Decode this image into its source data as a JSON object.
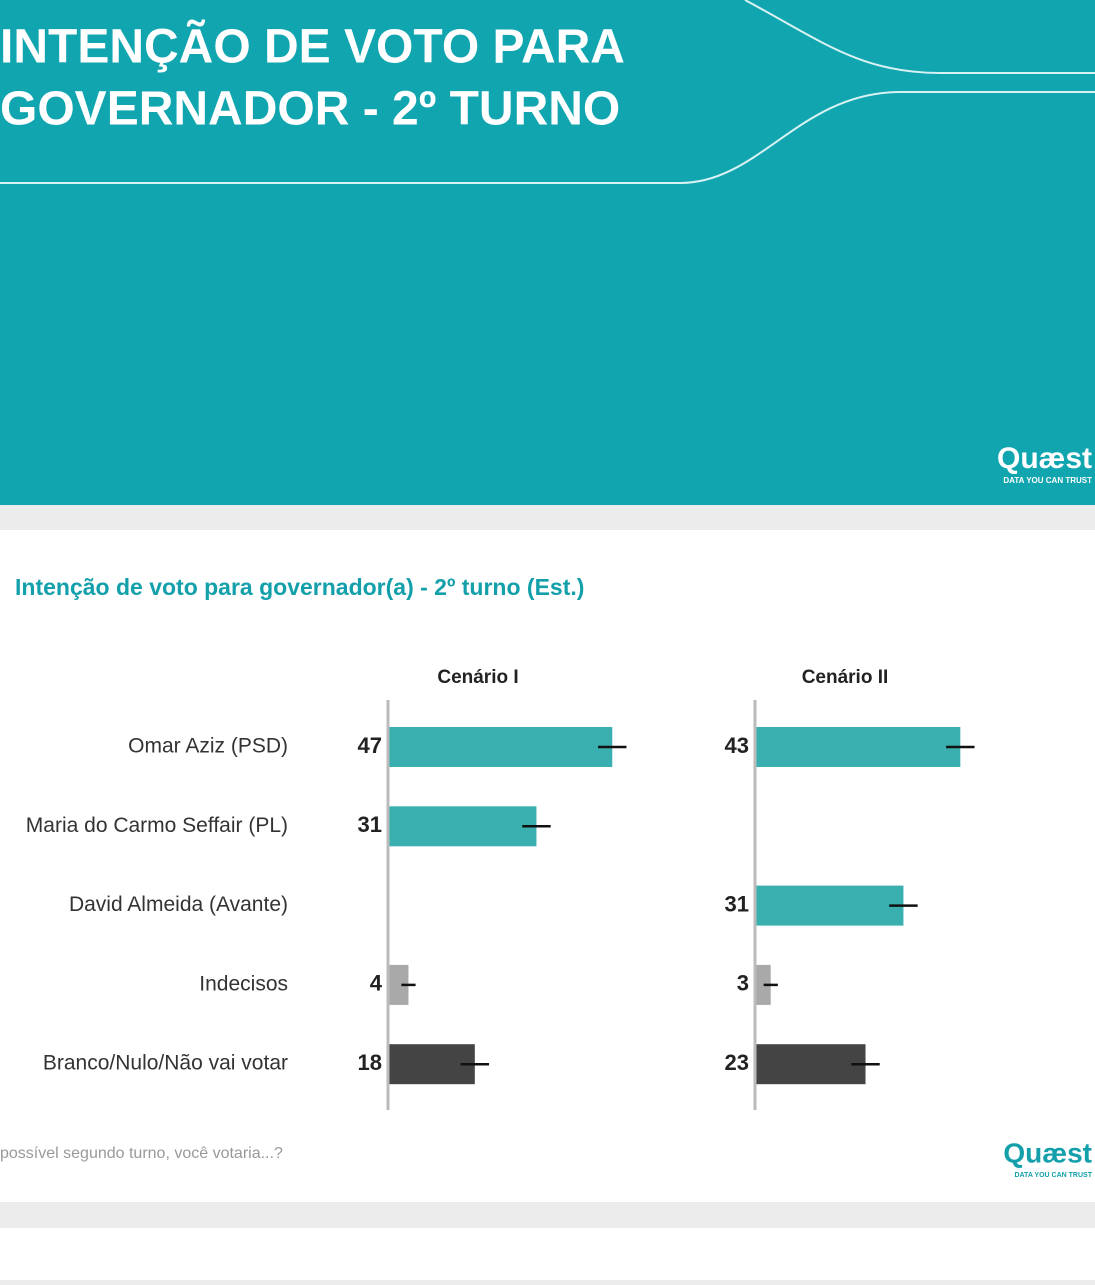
{
  "banner": {
    "title_lines": [
      "INTENÇÃO DE VOTO PARA",
      "GOVERNADOR - 2º TURNO"
    ],
    "logo": "Quæst",
    "tagline": "DATA YOU CAN TRUST"
  },
  "slide": {
    "title": "Intenção de voto para governador(a) - 2º turno (Est.)",
    "footnote": "possível segundo turno, você votaria...?",
    "logo": "Quæst",
    "tagline": "DATA YOU CAN TRUST"
  },
  "chart_data": {
    "type": "bar",
    "orientation": "horizontal",
    "categories": [
      "Omar Aziz (PSD)",
      "Maria do Carmo Seffair (PL)",
      "David Almeida (Avante)",
      "Indecisos",
      "Branco/Nulo/Não vai votar"
    ],
    "category_colors": [
      "#3aafb0",
      "#3aafb0",
      "#3aafb0",
      "#a9a9a9",
      "#444444"
    ],
    "series": [
      {
        "name": "Cenário I",
        "values": [
          47,
          31,
          null,
          4,
          18
        ],
        "errors": [
          3,
          3,
          null,
          1.5,
          3
        ]
      },
      {
        "name": "Cenário II",
        "values": [
          43,
          null,
          31,
          3,
          23
        ],
        "errors": [
          3,
          null,
          3,
          1.5,
          3
        ]
      }
    ],
    "xlim": [
      0,
      50
    ]
  }
}
